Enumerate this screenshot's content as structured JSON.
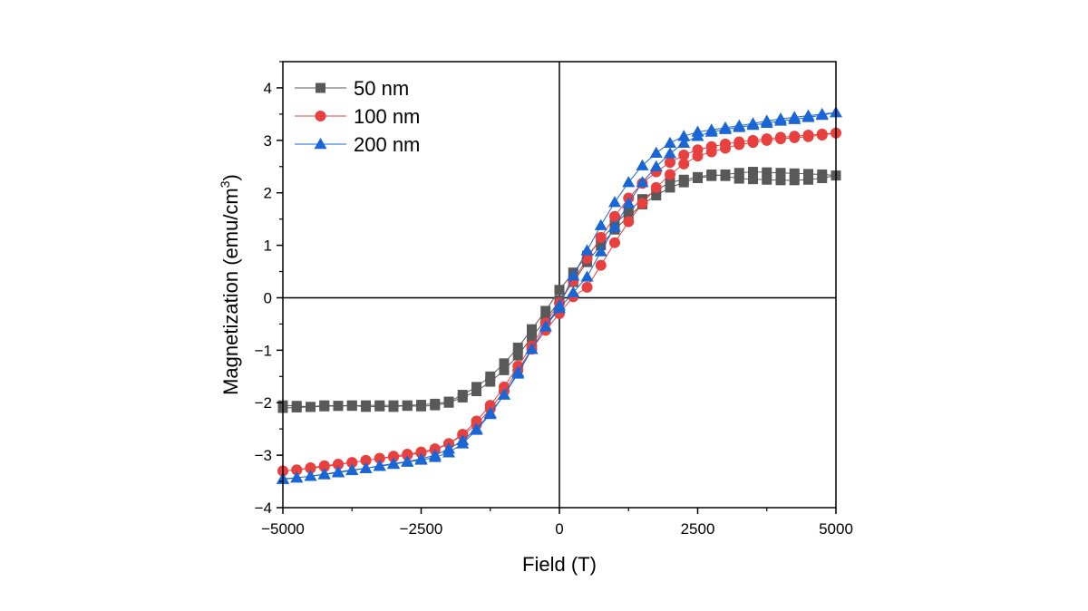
{
  "chart_data": {
    "type": "scatter",
    "xlabel": "Field (T)",
    "ylabel": {
      "main": "Magnetization (emu/cm",
      "sup": "3",
      "close": ")"
    },
    "xlim": [
      -5000,
      5000
    ],
    "ylim": [
      -4,
      4.5
    ],
    "xticks": [
      -5000,
      -2500,
      0,
      2500,
      5000
    ],
    "xtick_labels": [
      "−5000",
      "−2500",
      "0",
      "2500",
      "5000"
    ],
    "yticks": [
      -4,
      -3,
      -2,
      -1,
      0,
      1,
      2,
      3,
      4
    ],
    "ytick_labels": [
      "−4",
      "−3",
      "−2",
      "−1",
      "0",
      "1",
      "2",
      "3",
      "4"
    ],
    "grid": false,
    "legend_position": "top-left",
    "zero_lines": true,
    "series": [
      {
        "name": "50 nm",
        "color": "#595959",
        "marker": "square",
        "x": [
          -5000,
          -4750,
          -4500,
          -4250,
          -4000,
          -3750,
          -3500,
          -3250,
          -3000,
          -2750,
          -2500,
          -2250,
          -2000,
          -1750,
          -1500,
          -1250,
          -1000,
          -750,
          -500,
          -250,
          0,
          250,
          500,
          750,
          1000,
          1250,
          1500,
          1750,
          2000,
          2250,
          2500,
          2750,
          3000,
          3250,
          3500,
          3750,
          4000,
          4250,
          4500,
          4750,
          5000,
          4750,
          4500,
          4250,
          4000,
          3750,
          3500,
          3250,
          3000,
          2750,
          2500,
          2250,
          2000,
          1750,
          1500,
          1250,
          1000,
          750,
          500,
          250,
          0,
          -250,
          -500,
          -750,
          -1000,
          -1250,
          -1500,
          -1750,
          -2000,
          -2250,
          -2500,
          -2750,
          -3000,
          -3250,
          -3500,
          -3750,
          -4000,
          -4250,
          -4500,
          -4750,
          -5000
        ],
        "y": [
          -2.1,
          -2.09,
          -2.08,
          -2.07,
          -2.06,
          -2.06,
          -2.05,
          -2.05,
          -2.05,
          -2.06,
          -2.07,
          -2.05,
          -2.0,
          -1.9,
          -1.78,
          -1.6,
          -1.38,
          -1.1,
          -0.75,
          -0.42,
          -0.05,
          0.3,
          0.68,
          1.0,
          1.3,
          1.55,
          1.78,
          1.95,
          2.1,
          2.2,
          2.28,
          2.32,
          2.35,
          2.38,
          2.4,
          2.39,
          2.38,
          2.37,
          2.36,
          2.35,
          2.33,
          2.28,
          2.25,
          2.24,
          2.24,
          2.25,
          2.26,
          2.27,
          2.32,
          2.35,
          2.3,
          2.25,
          2.2,
          2.05,
          1.88,
          1.65,
          1.4,
          1.1,
          0.8,
          0.48,
          0.15,
          -0.25,
          -0.6,
          -0.95,
          -1.25,
          -1.5,
          -1.7,
          -1.85,
          -1.98,
          -2.02,
          -2.04,
          -2.05,
          -2.08,
          -2.07,
          -2.08,
          -2.05,
          -2.06,
          -2.05,
          -2.08,
          -2.06,
          -2.05
        ]
      },
      {
        "name": "100 nm",
        "color": "#e8403f",
        "marker": "circle",
        "x": [
          -5000,
          -4750,
          -4500,
          -4250,
          -4000,
          -3750,
          -3500,
          -3250,
          -3000,
          -2750,
          -2500,
          -2250,
          -2000,
          -1750,
          -1500,
          -1250,
          -1000,
          -750,
          -500,
          -250,
          0,
          250,
          500,
          750,
          1000,
          1250,
          1500,
          1750,
          2000,
          2250,
          2500,
          2750,
          3000,
          3250,
          3500,
          3750,
          4000,
          4250,
          4500,
          4750,
          5000,
          4750,
          4500,
          4250,
          4000,
          3750,
          3500,
          3250,
          3000,
          2750,
          2500,
          2250,
          2000,
          1750,
          1500,
          1250,
          1000,
          750,
          500,
          250,
          0,
          -250,
          -500,
          -750,
          -1000,
          -1250,
          -1500,
          -1750,
          -2000,
          -2250,
          -2500,
          -2750,
          -3000,
          -3250,
          -3500,
          -3750,
          -4000,
          -4250,
          -4500,
          -4750,
          -5000
        ],
        "y": [
          -3.3,
          -3.28,
          -3.25,
          -3.22,
          -3.18,
          -3.14,
          -3.1,
          -3.06,
          -3.02,
          -2.98,
          -2.94,
          -2.88,
          -2.78,
          -2.6,
          -2.35,
          -2.05,
          -1.7,
          -1.3,
          -0.92,
          -0.48,
          -0.1,
          0.32,
          0.75,
          1.15,
          1.55,
          1.9,
          2.18,
          2.4,
          2.58,
          2.72,
          2.82,
          2.88,
          2.93,
          2.97,
          3.0,
          3.03,
          3.06,
          3.08,
          3.1,
          3.12,
          3.14,
          3.1,
          3.07,
          3.05,
          3.03,
          3.0,
          2.96,
          2.92,
          2.85,
          2.78,
          2.7,
          2.55,
          2.35,
          2.1,
          1.8,
          1.45,
          1.05,
          0.62,
          0.2,
          0.02,
          -0.3,
          -0.62,
          -0.98,
          -1.38,
          -1.78,
          -2.12,
          -2.42,
          -2.62,
          -2.78,
          -2.9,
          -2.96,
          -3.0,
          -3.04,
          -3.06,
          -3.1,
          -3.14,
          -3.17,
          -3.2,
          -3.24,
          -3.28,
          -3.3
        ]
      },
      {
        "name": "200 nm",
        "color": "#1a66d4",
        "marker": "triangle",
        "x": [
          -5000,
          -4750,
          -4500,
          -4250,
          -4000,
          -3750,
          -3500,
          -3250,
          -3000,
          -2750,
          -2500,
          -2250,
          -2000,
          -1750,
          -1500,
          -1250,
          -1000,
          -750,
          -500,
          -250,
          0,
          250,
          500,
          750,
          1000,
          1250,
          1500,
          1750,
          2000,
          2250,
          2500,
          2750,
          3000,
          3250,
          3500,
          3750,
          4000,
          4250,
          4500,
          4750,
          5000,
          4750,
          4500,
          4250,
          4000,
          3750,
          3500,
          3250,
          3000,
          2750,
          2500,
          2250,
          2000,
          1750,
          1500,
          1250,
          1000,
          750,
          500,
          250,
          0,
          -250,
          -500,
          -750,
          -1000,
          -1250,
          -1500,
          -1750,
          -2000,
          -2250,
          -2500,
          -2750,
          -3000,
          -3250,
          -3500,
          -3750,
          -4000,
          -4250,
          -4500,
          -4750,
          -5000
        ],
        "y": [
          -3.45,
          -3.43,
          -3.4,
          -3.37,
          -3.33,
          -3.29,
          -3.25,
          -3.21,
          -3.17,
          -3.13,
          -3.09,
          -3.04,
          -2.95,
          -2.78,
          -2.52,
          -2.22,
          -1.85,
          -1.45,
          -0.98,
          -0.55,
          -0.15,
          0.42,
          0.9,
          1.38,
          1.82,
          2.2,
          2.52,
          2.76,
          2.95,
          3.08,
          3.16,
          3.2,
          3.24,
          3.28,
          3.32,
          3.37,
          3.41,
          3.44,
          3.47,
          3.5,
          3.53,
          3.48,
          3.44,
          3.4,
          3.37,
          3.33,
          3.29,
          3.25,
          3.21,
          3.16,
          3.08,
          2.95,
          2.75,
          2.5,
          2.2,
          1.8,
          1.35,
          0.88,
          0.4,
          0.1,
          -0.2,
          -0.55,
          -0.98,
          -1.42,
          -1.85,
          -2.2,
          -2.5,
          -2.72,
          -2.88,
          -3.0,
          -3.07,
          -3.12,
          -3.16,
          -3.2,
          -3.25,
          -3.28,
          -3.32,
          -3.36,
          -3.4,
          -3.43,
          -3.46
        ]
      }
    ]
  }
}
